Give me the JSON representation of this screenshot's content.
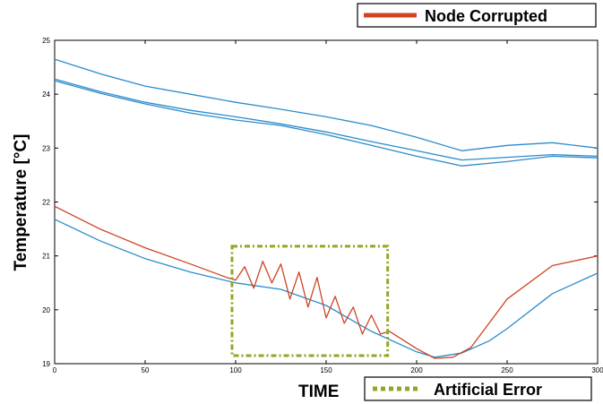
{
  "chart_data": {
    "type": "line",
    "title": "",
    "xlabel": "TIME",
    "ylabel": "Temperature [°C]",
    "xlim": [
      0,
      300
    ],
    "ylim": [
      19,
      25
    ],
    "xticks": [
      0,
      50,
      100,
      150,
      200,
      250,
      300
    ],
    "yticks": [
      19,
      20,
      21,
      22,
      23,
      24,
      25
    ],
    "grid": false,
    "colors": {
      "normal": "#2b8ccc",
      "corrupted": "#cc4422",
      "error_box": "#8fa824"
    },
    "legend": [
      {
        "label": "Node Corrupted",
        "placement": "top-right"
      },
      {
        "label": "Artificial Error",
        "placement": "bottom-right"
      }
    ],
    "annotation": {
      "label": "Artificial Error",
      "x_range": [
        98,
        184
      ],
      "y_range": [
        19.15,
        21.18
      ]
    },
    "series": [
      {
        "x": [
          0,
          25,
          50,
          75,
          100,
          125,
          150,
          175,
          200,
          225,
          250,
          275,
          300
        ],
        "values": [
          24.65,
          24.38,
          24.15,
          24.0,
          23.85,
          23.72,
          23.58,
          23.42,
          23.2,
          22.95,
          23.05,
          23.1,
          23.0
        ]
      },
      {
        "x": [
          0,
          25,
          50,
          75,
          100,
          125,
          150,
          175,
          200,
          225,
          250,
          275,
          300
        ],
        "values": [
          24.28,
          24.05,
          23.85,
          23.7,
          23.58,
          23.45,
          23.3,
          23.12,
          22.95,
          22.78,
          22.83,
          22.88,
          22.85
        ]
      },
      {
        "x": [
          0,
          25,
          50,
          75,
          100,
          125,
          150,
          175,
          200,
          225,
          250,
          275,
          300
        ],
        "values": [
          24.25,
          24.02,
          23.82,
          23.65,
          23.52,
          23.42,
          23.25,
          23.05,
          22.85,
          22.67,
          22.75,
          22.85,
          22.82
        ]
      },
      {
        "x": [
          0,
          25,
          50,
          75,
          100,
          125,
          150,
          175,
          200,
          210,
          225,
          240,
          250,
          275,
          300
        ],
        "values": [
          21.68,
          21.28,
          20.95,
          20.7,
          20.5,
          20.38,
          20.08,
          19.6,
          19.22,
          19.12,
          19.2,
          19.42,
          19.65,
          20.3,
          20.68
        ]
      },
      {
        "x": [
          0,
          25,
          50,
          75,
          95,
          100,
          105,
          110,
          115,
          120,
          125,
          130,
          135,
          140,
          145,
          150,
          155,
          160,
          165,
          170,
          175,
          180,
          185,
          200,
          210,
          220,
          230,
          240,
          250,
          275,
          300
        ],
        "values": [
          21.92,
          21.5,
          21.15,
          20.85,
          20.6,
          20.55,
          20.8,
          20.4,
          20.9,
          20.5,
          20.85,
          20.2,
          20.7,
          20.05,
          20.6,
          19.85,
          20.25,
          19.75,
          20.05,
          19.55,
          19.9,
          19.55,
          19.6,
          19.28,
          19.1,
          19.12,
          19.3,
          19.75,
          20.2,
          20.82,
          21.0
        ]
      }
    ]
  }
}
